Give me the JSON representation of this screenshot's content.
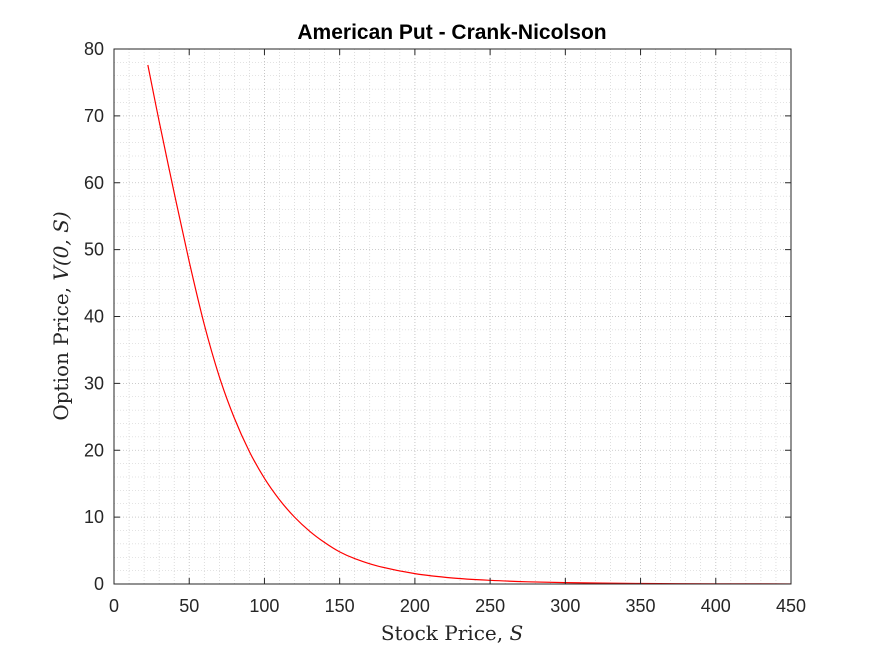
{
  "chart_data": {
    "type": "line",
    "title": "American Put - Crank-Nicolson",
    "xlabel": "Stock Price, ",
    "xlabel_var": "S",
    "ylabel": "Option Price, ",
    "ylabel_var": "V(0, S)",
    "xlim": [
      0,
      450
    ],
    "ylim": [
      0,
      80
    ],
    "xticks": [
      "0",
      "50",
      "100",
      "150",
      "200",
      "250",
      "300",
      "350",
      "400",
      "450"
    ],
    "yticks": [
      "0",
      "10",
      "20",
      "30",
      "40",
      "50",
      "60",
      "70",
      "80"
    ],
    "grid": true,
    "minor_grid": true,
    "line_color": "#ff0000",
    "series": [
      {
        "x": [
          22.5,
          30,
          40,
          50,
          60,
          70,
          80,
          90,
          100,
          110,
          120,
          130,
          140,
          150,
          160,
          175,
          200,
          225,
          250,
          275,
          300,
          325,
          350,
          375,
          400,
          425,
          450
        ],
        "y": [
          77.6,
          69.2,
          58.5,
          48.2,
          38.8,
          31.0,
          24.8,
          19.8,
          15.8,
          12.6,
          10.0,
          7.9,
          6.2,
          4.8,
          3.8,
          2.7,
          1.55,
          0.9,
          0.55,
          0.33,
          0.2,
          0.13,
          0.08,
          0.05,
          0.03,
          0.02,
          0.01
        ]
      }
    ]
  }
}
